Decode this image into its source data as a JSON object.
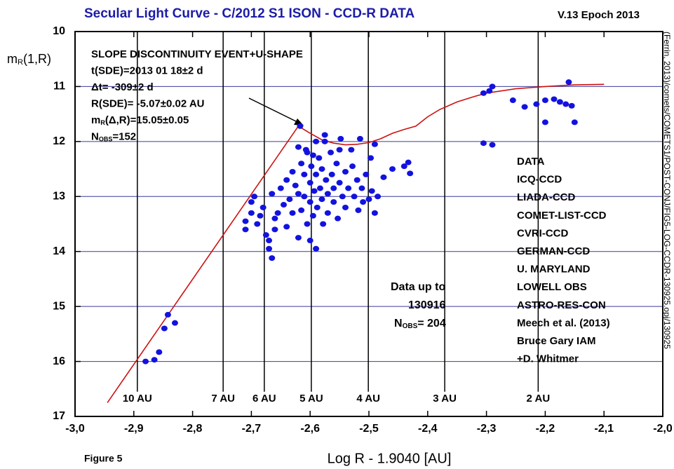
{
  "chart_data": {
    "type": "scatter",
    "title": "Secular Light Curve - C/2012 S1 ISON - CCD-R DATA",
    "version": "V.13 Epoch 2013",
    "ylabel": [
      "m",
      "R",
      "(1,R)"
    ],
    "xlabel": "Log R - 1.9040 [AU]",
    "figure_label": "Figure 5",
    "side_note": "(Ferrin, 2013)/comets/COMETS1/POST-CONJ/FIG5-LOG-CCDR-130925.opj/130925",
    "xlim": [
      -3.0,
      -2.0
    ],
    "ylim": [
      10,
      17
    ],
    "y_inverted": true,
    "xticks": [
      {
        "value": -3.0,
        "label": "-3,0"
      },
      {
        "value": -2.9,
        "label": "-2,9"
      },
      {
        "value": -2.8,
        "label": "-2,8"
      },
      {
        "value": -2.7,
        "label": "-2,7"
      },
      {
        "value": -2.6,
        "label": "-2,6"
      },
      {
        "value": -2.5,
        "label": "-2,5"
      },
      {
        "value": -2.4,
        "label": "-2,4"
      },
      {
        "value": -2.3,
        "label": "-2,3"
      },
      {
        "value": -2.2,
        "label": "-2,2"
      },
      {
        "value": -2.1,
        "label": "-2,1"
      },
      {
        "value": -2.0,
        "label": "-2,0"
      }
    ],
    "yticks": [
      10,
      11,
      12,
      13,
      14,
      15,
      16,
      17
    ],
    "grid": true,
    "grid_color": "#3b3b9c",
    "title_color": "#1c1ca8",
    "au_lines": [
      {
        "value": -2.894,
        "label": "10 AU"
      },
      {
        "value": -2.748,
        "label": "7 AU"
      },
      {
        "value": -2.678,
        "label": "6 AU"
      },
      {
        "value": -2.598,
        "label": "5 AU"
      },
      {
        "value": -2.501,
        "label": "4 AU"
      },
      {
        "value": -2.371,
        "label": "3 AU"
      },
      {
        "value": -2.212,
        "label": "2 AU"
      }
    ],
    "annotation": [
      [
        "SLOPE DISCONTINUITY EVENT+U-SHAPE"
      ],
      [
        "t(SDE)=2013 01 18±2 d"
      ],
      [
        "Δt= -309±2 d"
      ],
      [
        "R(SDE)= -5.07±0.02 AU"
      ],
      [
        "m",
        "R",
        "(Δ,R)=15.05±0.05"
      ],
      [
        "N",
        "OBS",
        "=152"
      ]
    ],
    "data_sources": [
      "DATA",
      "ICQ-CCD",
      "LIADA-CCD",
      "COMET-LIST-CCD",
      "CVRI-CCD",
      "GERMAN-CCD",
      "U. MARYLAND",
      "LOWELL OBS",
      "ASTRO-RES-CON",
      "Meech et al. (2013)",
      "Bruce Gary IAM",
      "+D. Whitmer"
    ],
    "data_note": [
      [
        "Data up to"
      ],
      [
        "130916"
      ],
      [
        "N",
        "OBS",
        "= 204"
      ]
    ],
    "color": "#1212e0",
    "x": [
      -2.88,
      -2.865,
      -2.857,
      -2.848,
      -2.842,
      -2.83,
      -2.617,
      -2.305,
      -2.295,
      -2.29,
      -2.305,
      -2.29,
      -2.255,
      -2.235,
      -2.215,
      -2.2,
      -2.2,
      -2.185,
      -2.175,
      -2.165,
      -2.16,
      -2.155,
      -2.15,
      -2.71,
      -2.71,
      -2.7,
      -2.7,
      -2.695,
      -2.69,
      -2.685,
      -2.68,
      -2.675,
      -2.67,
      -2.67,
      -2.665,
      -2.665,
      -2.66,
      -2.66,
      -2.655,
      -2.65,
      -2.645,
      -2.64,
      -2.64,
      -2.635,
      -2.63,
      -2.63,
      -2.625,
      -2.62,
      -2.62,
      -2.615,
      -2.615,
      -2.61,
      -2.61,
      -2.605,
      -2.605,
      -2.6,
      -2.6,
      -2.6,
      -2.598,
      -2.595,
      -2.593,
      -2.59,
      -2.59,
      -2.588,
      -2.585,
      -2.583,
      -2.58,
      -2.58,
      -2.578,
      -2.575,
      -2.573,
      -2.57,
      -2.57,
      -2.565,
      -2.563,
      -2.56,
      -2.56,
      -2.555,
      -2.553,
      -2.55,
      -2.548,
      -2.545,
      -2.54,
      -2.54,
      -2.535,
      -2.53,
      -2.528,
      -2.525,
      -2.52,
      -2.518,
      -2.515,
      -2.512,
      -2.51,
      -2.505,
      -2.5,
      -2.497,
      -2.495,
      -2.49,
      -2.49,
      -2.485,
      -2.475,
      -2.46,
      -2.44,
      -2.433,
      -2.43,
      -2.62,
      -2.607,
      -2.59,
      -2.595,
      -2.55,
      -2.575
    ],
    "values": [
      16.0,
      15.97,
      15.83,
      15.4,
      15.15,
      15.3,
      11.72,
      11.12,
      11.08,
      11.0,
      12.03,
      12.06,
      11.25,
      11.37,
      11.32,
      11.25,
      11.65,
      11.23,
      11.28,
      11.32,
      10.92,
      11.35,
      11.65,
      13.45,
      13.6,
      13.1,
      13.3,
      13.0,
      13.5,
      13.35,
      13.2,
      13.7,
      13.8,
      13.95,
      14.12,
      12.95,
      13.4,
      13.6,
      13.3,
      12.85,
      13.15,
      13.55,
      12.7,
      13.05,
      12.55,
      13.3,
      12.8,
      13.75,
      12.95,
      12.4,
      13.25,
      12.6,
      13.0,
      12.2,
      13.5,
      12.75,
      13.1,
      13.8,
      12.45,
      13.35,
      12.9,
      12.6,
      13.95,
      13.2,
      12.3,
      12.85,
      12.5,
      13.05,
      13.5,
      11.88,
      12.7,
      12.95,
      13.3,
      12.2,
      12.6,
      12.85,
      13.1,
      12.4,
      13.4,
      12.75,
      11.95,
      13.0,
      12.55,
      13.2,
      12.85,
      12.15,
      12.45,
      13.0,
      12.7,
      13.25,
      11.95,
      12.85,
      13.1,
      12.6,
      13.05,
      12.3,
      12.9,
      12.05,
      13.3,
      13.0,
      12.65,
      12.5,
      12.45,
      12.38,
      12.58,
      12.1,
      12.15,
      12.0,
      12.25,
      12.15,
      12.0
    ],
    "fit_line": {
      "color": "#cc1111",
      "x": [
        -2.945,
        -2.62,
        -2.6,
        -2.58,
        -2.56,
        -2.54,
        -2.52,
        -2.5,
        -2.48,
        -2.46,
        -2.44,
        -2.42,
        -2.4,
        -2.38,
        -2.35,
        -2.32,
        -2.3,
        -2.25,
        -2.2,
        -2.15,
        -2.1
      ],
      "values": [
        16.75,
        11.72,
        11.85,
        11.97,
        12.03,
        12.06,
        12.05,
        12.02,
        11.95,
        11.85,
        11.78,
        11.72,
        11.55,
        11.42,
        11.28,
        11.18,
        11.12,
        11.04,
        11.0,
        10.97,
        10.96
      ]
    }
  }
}
